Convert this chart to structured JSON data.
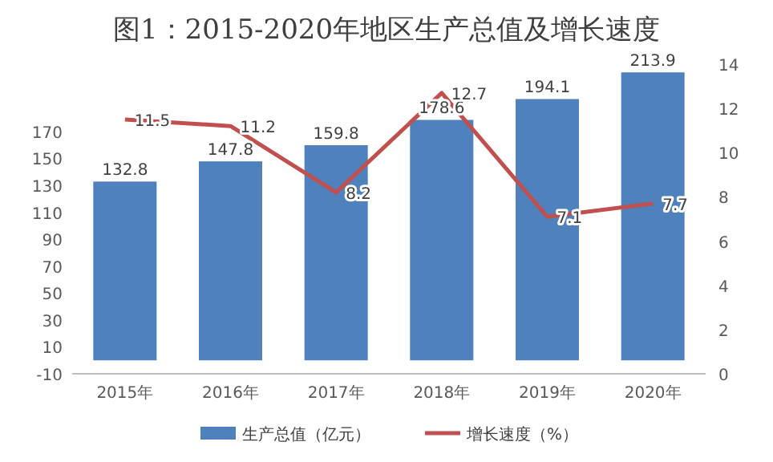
{
  "chart_data": {
    "type": "bar",
    "title": "图1：2015-2020年地区生产总值及增长速度",
    "categories": [
      "2015年",
      "2016年",
      "2017年",
      "2018年",
      "2019年",
      "2020年"
    ],
    "series": [
      {
        "name": "生产总值（亿元）",
        "color": "#4f81bd",
        "values": [
          132.8,
          147.8,
          159.8,
          178.6,
          194.1,
          213.9
        ]
      },
      {
        "name": "增长速度（%）",
        "type": "line",
        "axis": "y2",
        "color": "#c0504d",
        "values": [
          11.5,
          11.2,
          8.2,
          12.7,
          7.1,
          7.7
        ]
      }
    ],
    "ylim": [
      -10,
      220
    ],
    "yticks": [
      -10,
      10,
      30,
      50,
      70,
      90,
      110,
      130,
      150,
      170
    ],
    "y2lim": [
      0,
      14
    ],
    "y2ticks": [
      0,
      2,
      4,
      6,
      8,
      10,
      12,
      14
    ],
    "data_labels": true,
    "legend": "bottom",
    "grid": false,
    "marker": "none"
  }
}
